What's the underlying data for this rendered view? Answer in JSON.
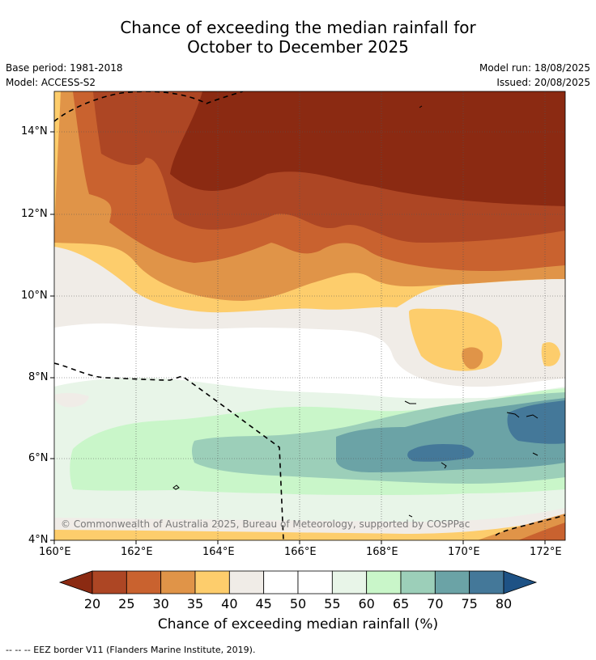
{
  "title_line1": "Chance of exceeding the median rainfall for",
  "title_line2": "October to December 2025",
  "meta": {
    "base_period": "Base period: 1981-2018",
    "model": "Model: ACCESS-S2",
    "model_run": "Model run: 18/08/2025",
    "issued": "Issued: 20/08/2025"
  },
  "map": {
    "lat_labels": [
      "14°N",
      "12°N",
      "10°N",
      "8°N",
      "6°N",
      "4°N"
    ],
    "lon_labels": [
      "160°E",
      "162°E",
      "164°E",
      "166°E",
      "168°E",
      "170°E",
      "172°E"
    ],
    "copyright": "© Commonwealth of Australia 2025, Bureau of Meteorology, supported by COSPPac"
  },
  "colorbar": {
    "ticks": [
      "20",
      "25",
      "30",
      "35",
      "40",
      "45",
      "50",
      "55",
      "60",
      "65",
      "70",
      "75",
      "80"
    ],
    "title": "Chance of exceeding median rainfall (%)",
    "colors": [
      "#8b2a12",
      "#ad4624",
      "#c9622f",
      "#e09448",
      "#fdcd6c",
      "#f0ece7",
      "#ffffff",
      "#ffffff",
      "#e8f5e8",
      "#c9f6c9",
      "#9ccfb9",
      "#6ba3a6",
      "#447899",
      "#1e5285"
    ]
  },
  "legend_text": "--  --  -- EEZ border V11 (Flanders Marine Institute, 2019)."
}
